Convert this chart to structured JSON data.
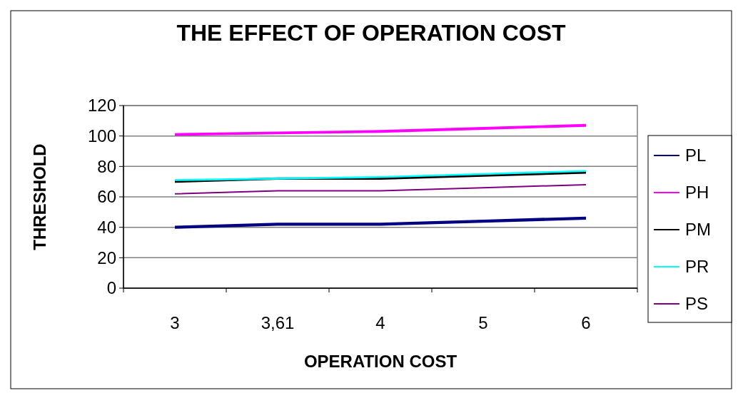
{
  "chart_data": {
    "type": "line",
    "title": "THE EFFECT OF OPERATION COST",
    "xlabel": "OPERATION COST",
    "ylabel": "THRESHOLD",
    "categories": [
      "3",
      "3,61",
      "4",
      "5",
      "6"
    ],
    "series": [
      {
        "name": "PL",
        "color": "#000080",
        "values": [
          40,
          42,
          42,
          44,
          46
        ]
      },
      {
        "name": "PH",
        "color": "#ff00ff",
        "values": [
          101,
          102,
          103,
          105,
          107
        ]
      },
      {
        "name": "PM",
        "color": "#000000",
        "values": [
          70,
          72,
          72,
          74,
          76
        ]
      },
      {
        "name": "PR",
        "color": "#00ffff",
        "values": [
          71,
          72,
          73,
          75,
          77
        ]
      },
      {
        "name": "PS",
        "color": "#800080",
        "values": [
          62,
          64,
          64,
          66,
          68
        ]
      }
    ],
    "ylim": [
      0,
      120
    ],
    "yticks": [
      0,
      20,
      40,
      60,
      80,
      100,
      120
    ],
    "grid": "y",
    "legend": "right",
    "marker": "none"
  }
}
